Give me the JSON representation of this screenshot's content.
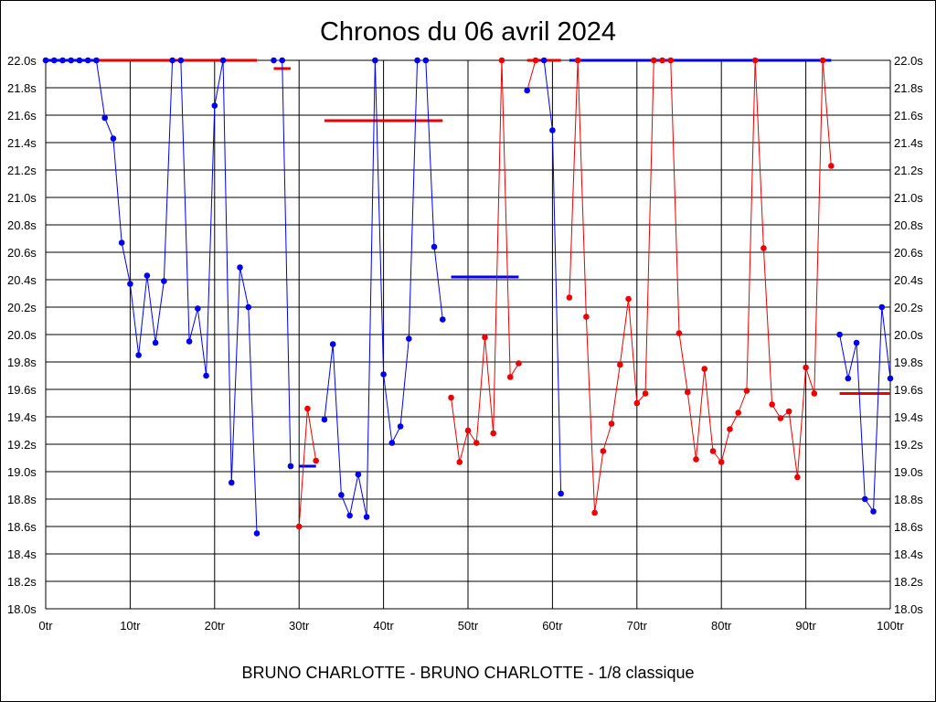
{
  "chart_data": {
    "type": "line",
    "title": "Chronos du 06 avril 2024",
    "subtitle": "BRUNO CHARLOTTE - BRUNO CHARLOTTE - 1/8 classique",
    "x_tick_labels": [
      "0tr",
      "10tr",
      "20tr",
      "30tr",
      "40tr",
      "50tr",
      "60tr",
      "70tr",
      "80tr",
      "90tr",
      "100tr"
    ],
    "y_tick_labels": [
      "18.0s",
      "18.2s",
      "18.4s",
      "18.6s",
      "18.8s",
      "19.0s",
      "19.2s",
      "19.4s",
      "19.6s",
      "19.8s",
      "20.0s",
      "20.2s",
      "20.4s",
      "20.6s",
      "20.8s",
      "21.0s",
      "21.2s",
      "21.4s",
      "21.6s",
      "21.8s",
      "22.0s"
    ],
    "xlim": [
      0,
      100
    ],
    "ylim": [
      18.0,
      22.0
    ],
    "grid": true,
    "colors": {
      "blue": "#0000ee",
      "red": "#ee0000",
      "grid": "#000000"
    },
    "points": [
      [
        0,
        22.0,
        "blue"
      ],
      [
        1,
        22.0,
        "blue"
      ],
      [
        2,
        22.0,
        "blue"
      ],
      [
        3,
        22.0,
        "blue"
      ],
      [
        4,
        22.0,
        "blue"
      ],
      [
        5,
        22.0,
        "blue"
      ],
      [
        6,
        22.0,
        "blue"
      ],
      [
        7,
        21.58,
        "blue"
      ],
      [
        8,
        21.43,
        "blue"
      ],
      [
        9,
        20.67,
        "blue"
      ],
      [
        10,
        20.37,
        "blue"
      ],
      [
        11,
        19.85,
        "blue"
      ],
      [
        12,
        20.43,
        "blue"
      ],
      [
        13,
        19.94,
        "blue"
      ],
      [
        14,
        20.39,
        "blue"
      ],
      [
        15,
        22.0,
        "blue"
      ],
      [
        16,
        22.0,
        "blue"
      ],
      [
        17,
        19.95,
        "blue"
      ],
      [
        18,
        20.19,
        "blue"
      ],
      [
        19,
        19.7,
        "blue"
      ],
      [
        20,
        21.67,
        "blue"
      ],
      [
        21,
        22.0,
        "blue"
      ],
      [
        22,
        18.92,
        "blue"
      ],
      [
        23,
        20.49,
        "blue"
      ],
      [
        24,
        20.2,
        "blue"
      ],
      [
        25,
        18.55,
        "blue"
      ],
      [
        27,
        22.0,
        "blue"
      ],
      [
        28,
        22.0,
        "blue"
      ],
      [
        29,
        19.04,
        "blue"
      ],
      [
        30,
        18.6,
        "red"
      ],
      [
        31,
        19.46,
        "red"
      ],
      [
        32,
        19.08,
        "red"
      ],
      [
        33,
        19.38,
        "blue"
      ],
      [
        34,
        19.93,
        "blue"
      ],
      [
        35,
        18.83,
        "blue"
      ],
      [
        36,
        18.68,
        "blue"
      ],
      [
        37,
        18.98,
        "blue"
      ],
      [
        38,
        18.67,
        "blue"
      ],
      [
        39,
        22.0,
        "blue"
      ],
      [
        40,
        19.71,
        "blue"
      ],
      [
        41,
        19.21,
        "blue"
      ],
      [
        42,
        19.33,
        "blue"
      ],
      [
        43,
        19.97,
        "blue"
      ],
      [
        44,
        22.0,
        "blue"
      ],
      [
        45,
        22.0,
        "blue"
      ],
      [
        46,
        20.64,
        "blue"
      ],
      [
        47,
        20.11,
        "blue"
      ],
      [
        48,
        19.54,
        "red"
      ],
      [
        49,
        19.07,
        "red"
      ],
      [
        50,
        19.3,
        "red"
      ],
      [
        51,
        19.21,
        "red"
      ],
      [
        52,
        19.98,
        "red"
      ],
      [
        53,
        19.28,
        "red"
      ],
      [
        54,
        22.0,
        "red"
      ],
      [
        55,
        19.69,
        "red"
      ],
      [
        56,
        19.79,
        "red"
      ],
      [
        57,
        21.78,
        "blue"
      ],
      [
        58,
        22.0,
        "red"
      ],
      [
        59,
        22.0,
        "blue"
      ],
      [
        60,
        21.49,
        "blue"
      ],
      [
        61,
        18.84,
        "blue"
      ],
      [
        62,
        20.27,
        "red"
      ],
      [
        63,
        22.0,
        "red"
      ],
      [
        64,
        20.13,
        "red"
      ],
      [
        65,
        18.7,
        "red"
      ],
      [
        66,
        19.15,
        "red"
      ],
      [
        67,
        19.35,
        "red"
      ],
      [
        68,
        19.78,
        "red"
      ],
      [
        69,
        20.26,
        "red"
      ],
      [
        70,
        19.5,
        "red"
      ],
      [
        71,
        19.57,
        "red"
      ],
      [
        72,
        22.0,
        "red"
      ],
      [
        73,
        22.0,
        "red"
      ],
      [
        74,
        22.0,
        "red"
      ],
      [
        75,
        20.01,
        "red"
      ],
      [
        76,
        19.58,
        "red"
      ],
      [
        77,
        19.09,
        "red"
      ],
      [
        78,
        19.75,
        "red"
      ],
      [
        79,
        19.15,
        "red"
      ],
      [
        80,
        19.07,
        "red"
      ],
      [
        81,
        19.31,
        "red"
      ],
      [
        82,
        19.43,
        "red"
      ],
      [
        83,
        19.59,
        "red"
      ],
      [
        84,
        22.0,
        "red"
      ],
      [
        85,
        20.63,
        "red"
      ],
      [
        86,
        19.49,
        "red"
      ],
      [
        87,
        19.39,
        "red"
      ],
      [
        88,
        19.44,
        "red"
      ],
      [
        89,
        18.96,
        "red"
      ],
      [
        90,
        19.76,
        "red"
      ],
      [
        91,
        19.57,
        "red"
      ],
      [
        92,
        22.0,
        "red"
      ],
      [
        93,
        21.23,
        "red"
      ],
      [
        94,
        20.0,
        "blue"
      ],
      [
        95,
        19.68,
        "blue"
      ],
      [
        96,
        19.94,
        "blue"
      ],
      [
        97,
        18.8,
        "blue"
      ],
      [
        98,
        18.71,
        "blue"
      ],
      [
        99,
        20.2,
        "blue"
      ],
      [
        100,
        19.68,
        "blue"
      ]
    ],
    "segments": [
      [
        0,
        29
      ],
      [
        30,
        32
      ],
      [
        33,
        47
      ],
      [
        48,
        56
      ],
      [
        57,
        61
      ],
      [
        62,
        93
      ],
      [
        94,
        100
      ]
    ],
    "average_lines": [
      {
        "x0": 0,
        "x1": 6,
        "y": 22.0,
        "color": "blue"
      },
      {
        "x0": 6,
        "x1": 25,
        "y": 22.0,
        "color": "red"
      },
      {
        "x0": 27,
        "x1": 29,
        "y": 21.94,
        "color": "red"
      },
      {
        "x0": 30,
        "x1": 32,
        "y": 19.04,
        "color": "blue"
      },
      {
        "x0": 33,
        "x1": 47,
        "y": 21.56,
        "color": "red"
      },
      {
        "x0": 48,
        "x1": 56,
        "y": 20.42,
        "color": "blue"
      },
      {
        "x0": 57,
        "x1": 61,
        "y": 22.0,
        "color": "red"
      },
      {
        "x0": 62,
        "x1": 93,
        "y": 22.0,
        "color": "blue"
      },
      {
        "x0": 94,
        "x1": 100,
        "y": 19.57,
        "color": "red"
      }
    ]
  }
}
